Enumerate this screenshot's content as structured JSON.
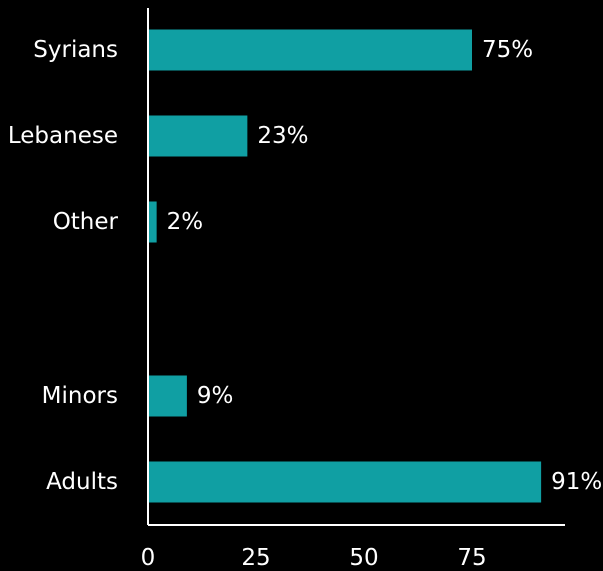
{
  "chart_data": {
    "type": "bar",
    "orientation": "horizontal",
    "categories": [
      "Syrians",
      "Lebanese",
      "Other",
      "Minors",
      "Adults"
    ],
    "values": [
      75,
      23,
      2,
      9,
      91
    ],
    "value_labels": [
      "75%",
      "23%",
      "2%",
      "9%",
      "91%"
    ],
    "groups": [
      [
        "Syrians",
        "Lebanese",
        "Other"
      ],
      [
        "Minors",
        "Adults"
      ]
    ],
    "x_ticks": [
      0,
      25,
      50,
      75
    ],
    "xlim": [
      0,
      100
    ],
    "grid": false,
    "legend": "none",
    "bar_color": "#109fa3",
    "text_color": "#ffffff",
    "background": "#000000"
  }
}
